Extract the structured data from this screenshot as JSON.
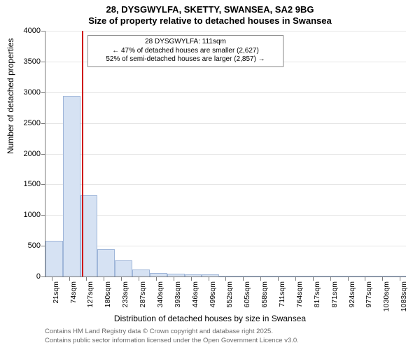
{
  "title_line1": "28, DYSGWYLFA, SKETTY, SWANSEA, SA2 9BG",
  "title_line2": "Size of property relative to detached houses in Swansea",
  "yaxis_title": "Number of detached properties",
  "xaxis_title": "Distribution of detached houses by size in Swansea",
  "chart": {
    "type": "histogram",
    "background_color": "#ffffff",
    "grid_color": "#e6e6e6",
    "axis_color": "#7b7b7b",
    "bar_fill": "#d6e2f3",
    "bar_stroke": "#9fb6d9",
    "refline_color": "#cf0f0f",
    "title_fontsize": 13,
    "label_fontsize": 12,
    "tick_fontsize": 11,
    "ylim": [
      0,
      4000
    ],
    "ytick_step": 500,
    "yticks": [
      0,
      500,
      1000,
      1500,
      2000,
      2500,
      3000,
      3500,
      4000
    ],
    "x_min": 0,
    "x_max": 1100,
    "x_tick_labels": [
      "21sqm",
      "74sqm",
      "127sqm",
      "180sqm",
      "233sqm",
      "287sqm",
      "340sqm",
      "393sqm",
      "446sqm",
      "499sqm",
      "552sqm",
      "605sqm",
      "658sqm",
      "711sqm",
      "764sqm",
      "817sqm",
      "871sqm",
      "924sqm",
      "977sqm",
      "1030sqm",
      "1083sqm"
    ],
    "x_tick_positions": [
      21,
      74,
      127,
      180,
      233,
      287,
      340,
      393,
      446,
      499,
      552,
      605,
      658,
      711,
      764,
      817,
      871,
      924,
      977,
      1030,
      1083
    ],
    "bars": [
      {
        "x0": 0,
        "x1": 53,
        "count": 580
      },
      {
        "x0": 53,
        "x1": 106,
        "count": 2940
      },
      {
        "x0": 106,
        "x1": 159,
        "count": 1320
      },
      {
        "x0": 159,
        "x1": 212,
        "count": 450
      },
      {
        "x0": 212,
        "x1": 265,
        "count": 260
      },
      {
        "x0": 265,
        "x1": 318,
        "count": 110
      },
      {
        "x0": 318,
        "x1": 371,
        "count": 55
      },
      {
        "x0": 371,
        "x1": 424,
        "count": 45
      },
      {
        "x0": 424,
        "x1": 477,
        "count": 30
      },
      {
        "x0": 477,
        "x1": 530,
        "count": 40
      },
      {
        "x0": 530,
        "x1": 583,
        "count": 15
      },
      {
        "x0": 583,
        "x1": 636,
        "count": 8
      },
      {
        "x0": 636,
        "x1": 689,
        "count": 6
      },
      {
        "x0": 689,
        "x1": 742,
        "count": 4
      },
      {
        "x0": 742,
        "x1": 795,
        "count": 4
      },
      {
        "x0": 795,
        "x1": 848,
        "count": 3
      },
      {
        "x0": 848,
        "x1": 901,
        "count": 3
      },
      {
        "x0": 901,
        "x1": 954,
        "count": 2
      },
      {
        "x0": 954,
        "x1": 1007,
        "count": 2
      },
      {
        "x0": 1007,
        "x1": 1060,
        "count": 2
      },
      {
        "x0": 1060,
        "x1": 1100,
        "count": 2
      }
    ],
    "reference_value_sqm": 111,
    "annotation": {
      "line1": "28 DYSGWYLFA: 111sqm",
      "line2": "← 47% of detached houses are smaller (2,627)",
      "line3": "52% of semi-detached houses are larger (2,857) →"
    }
  },
  "attribution_line1": "Contains HM Land Registry data © Crown copyright and database right 2025.",
  "attribution_line2": "Contains public sector information licensed under the Open Government Licence v3.0."
}
